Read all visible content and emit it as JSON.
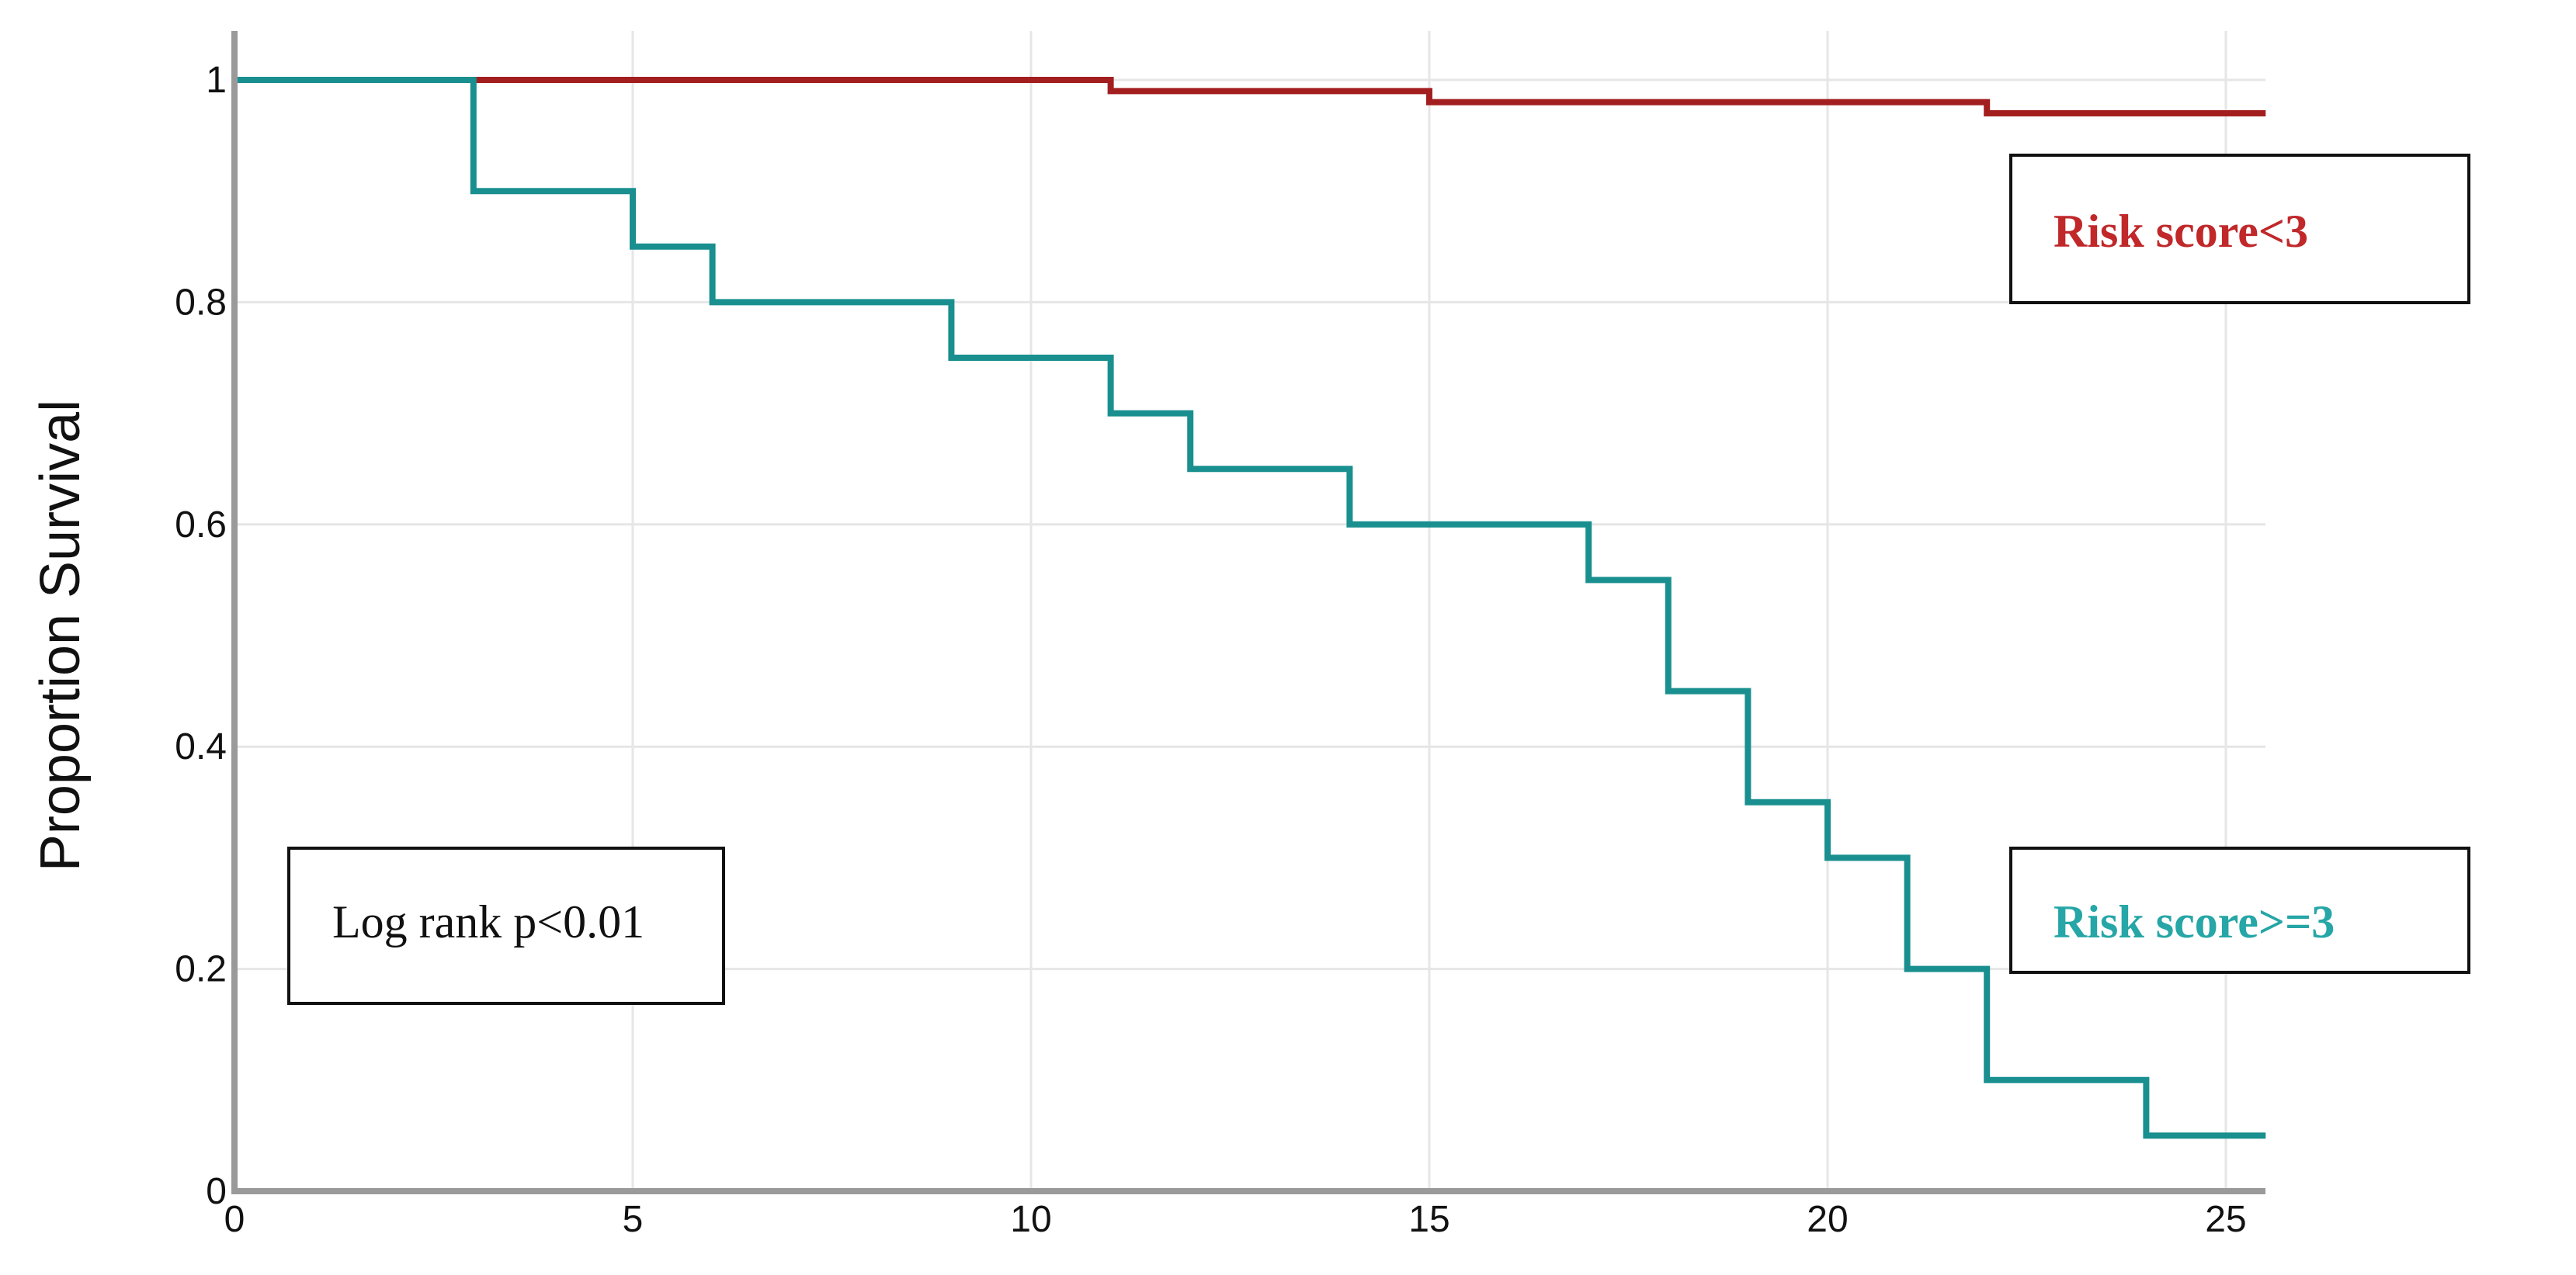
{
  "chart_data": {
    "type": "line",
    "subtype": "kaplan-meier-step",
    "title": "",
    "xlabel": "",
    "ylabel": "Proportion Survival",
    "xlim": [
      0,
      25.5
    ],
    "ylim": [
      0,
      1.05
    ],
    "x_ticks": [
      0,
      5,
      10,
      15,
      20,
      25
    ],
    "x_tick_labels": [
      "0",
      "5",
      "10",
      "15",
      "20",
      "25"
    ],
    "y_ticks": [
      0,
      0.2,
      0.4,
      0.6,
      0.8,
      1
    ],
    "y_tick_labels": [
      "0",
      "0.2",
      "0.4",
      "0.6",
      "0.8",
      "1"
    ],
    "grid": true,
    "series": [
      {
        "name": "Risk score<3",
        "color": "#a31f1f",
        "x": [
          0,
          11,
          15,
          22,
          25.5
        ],
        "y": [
          1.0,
          0.99,
          0.98,
          0.97,
          0.97
        ]
      },
      {
        "name": "Risk score>=3",
        "color": "#1a8f8f",
        "x": [
          0,
          3,
          5,
          6,
          9,
          11,
          12,
          14,
          17,
          18,
          19,
          20,
          21,
          22,
          24,
          25.5
        ],
        "y": [
          1.0,
          0.9,
          0.85,
          0.8,
          0.75,
          0.7,
          0.65,
          0.6,
          0.55,
          0.45,
          0.35,
          0.3,
          0.2,
          0.1,
          0.05,
          0.05
        ]
      }
    ],
    "annotations": [
      {
        "text": "Risk score<3",
        "color": "#c0282a",
        "placement": "top-right"
      },
      {
        "text": "Risk score>=3",
        "color": "#26a6a6",
        "placement": "bottom-right"
      },
      {
        "text": "Log rank p<0.01",
        "color": "#111111",
        "placement": "bottom-left"
      }
    ]
  }
}
